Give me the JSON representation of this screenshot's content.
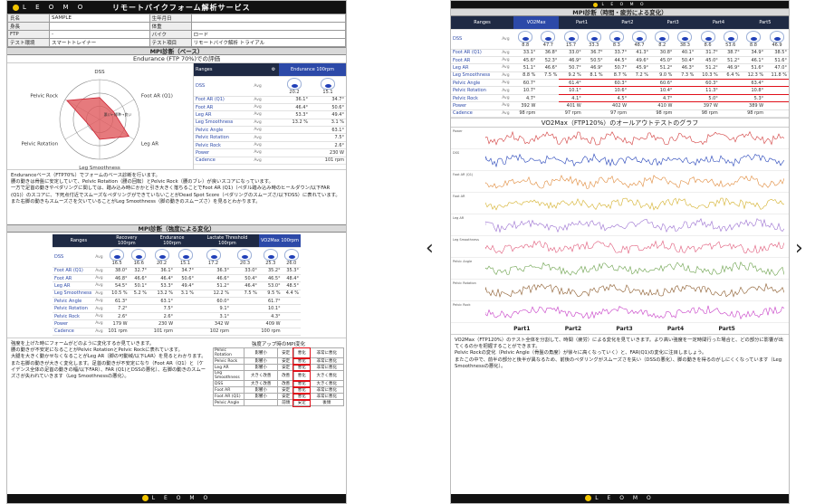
{
  "brand": {
    "logo_text": "L E O M O",
    "accent": "#f2c500"
  },
  "left_doc": {
    "title": "リモートバイクフォーム解析サービス",
    "info": [
      [
        "氏名",
        "SAMPLE",
        "生年月日",
        ""
      ],
      [
        "身長",
        "",
        "体重",
        ""
      ],
      [
        "FTP",
        "-",
        "バイク",
        "ロード"
      ],
      [
        "テスト環境",
        "スマートトレイナー",
        "テスト項目",
        "リモートバイク解析 トライアル"
      ]
    ],
    "section1": "MPI診断（ベース）",
    "subtitle1": "Endurance (FTP 70%)での評価",
    "radar": {
      "labels": [
        "DSS",
        "Foot AR (Q1)",
        "Leg AR",
        "Leg Smoothness",
        "Pelvic Rotation",
        "Pelvic Rock"
      ],
      "values": [
        0.55,
        0.4,
        0.85,
        0.5,
        0.3,
        0.95
      ],
      "ring_labels": "悪い←標準→良い",
      "color": "#e0595c"
    },
    "metrics_table": {
      "col_metric": "Ranges",
      "col_value": "Endurance 100rpm",
      "rows": [
        [
          "DSS",
          "Avg",
          "20.2",
          "15.1"
        ],
        [
          "Foot AR (Q1)",
          "Avg",
          "36.1°",
          "34.7°"
        ],
        [
          "Foot AR",
          "Avg",
          "46.4°",
          "50.6°"
        ],
        [
          "Leg AR",
          "Avg",
          "53.3°",
          "49.4°"
        ],
        [
          "Leg Smoothness",
          "Avg",
          "13.2 %",
          "3.1 %"
        ],
        [
          "Pelvic Angle",
          "Avg",
          "",
          "63.1°"
        ],
        [
          "Pelvic Rotation",
          "Avg",
          "",
          "7.5°"
        ],
        [
          "Pelvic Rock",
          "Avg",
          "",
          "2.6°"
        ],
        [
          "Power",
          "Avg",
          "",
          "230 W"
        ],
        [
          "Cadence",
          "Avg",
          "",
          "101 rpm"
        ]
      ]
    },
    "paragraphs": [
      "Enduranceベース（FTP70%）でフォームのベース診断を行います。",
      "腰の動きは骨盤に安定していて、Pelvic Rotation（腰の回転）とPelvic Rock（腰のブレ）が良いスコアになっています。",
      "一方で足首の動きやペダリングに関しては、踏み込み時にかかと引き大きく落ちることでFoot AR (Q1)（ペダル踏み込み時のヒールダウン/以下FAR (Q1)）のスコアに、下死点付近でスムーズなペダリングができていないことがDead Spot Score（ペダリングのスムーズさ/以下DSS）に表れています。",
      "また右脚の動きもスムーズさを欠いていることがLeg Smoothness（脚の動きのスムーズさ）を見るとわかります。"
    ],
    "section2": "MPI診断（強度による変化）",
    "intensity_table": {
      "headers": [
        "Ranges",
        "Recovery 100rpm",
        "Endurance 100rpm",
        "Lactate Threshold 100rpm",
        "VO2Max 100rpm"
      ],
      "rows": [
        [
          "DSS",
          "Avg",
          "16.5",
          "16.6",
          "20.2",
          "15.1",
          "17.2",
          "20.3",
          "25.3",
          "26.0"
        ],
        [
          "Foot AR (Q1)",
          "Avg",
          "38.0°",
          "32.7°",
          "36.1°",
          "34.7°",
          "36.3°",
          "33.0°",
          "35.2°",
          "35.3°"
        ],
        [
          "Foot AR",
          "Avg",
          "46.8°",
          "46.6°",
          "46.4°",
          "50.6°",
          "46.6°",
          "50.4°",
          "46.5°",
          "48.4°"
        ],
        [
          "Leg AR",
          "Avg",
          "54.5°",
          "50.1°",
          "53.3°",
          "49.4°",
          "51.2°",
          "46.4°",
          "53.0°",
          "48.5°"
        ],
        [
          "Leg Smoothness",
          "Avg",
          "10.5 %",
          "5.2 %",
          "13.2 %",
          "3.1 %",
          "12.2 %",
          "7.5 %",
          "9.5 %",
          "4.4 %"
        ],
        [
          "Pelvic Angle",
          "Avg",
          "61.3°",
          "",
          "63.1°",
          "",
          "60.0°",
          "",
          "61.7°",
          ""
        ],
        [
          "Pelvic Rotation",
          "Avg",
          "7.2°",
          "",
          "7.5°",
          "",
          "9.1°",
          "",
          "10.1°",
          ""
        ],
        [
          "Pelvic Rock",
          "Avg",
          "2.6°",
          "",
          "2.6°",
          "",
          "3.1°",
          "",
          "4.3°",
          ""
        ],
        [
          "Power",
          "Avg",
          "179 W",
          "",
          "230 W",
          "",
          "342 W",
          "",
          "409 W",
          ""
        ],
        [
          "Cadence",
          "Avg",
          "101 rpm",
          "",
          "101 rpm",
          "",
          "102 rpm",
          "",
          "100 rpm",
          ""
        ]
      ]
    },
    "paragraphs2": [
      "強度を上げた時にフォームがどのように変化するか見ていきます。",
      "腰の動きが不安定になることがPelvic RotationとPelvic Rockに表れています。",
      "大腿を大きく動かせなくなることがLeg AR（脚の可動域/以下LAR）を見るとわかります。",
      "また右脚の動きが大きく変化します。足首の動きが不安定になり（Foot AR（Q1）と（ケイデンス全体の足首の動きの幅/以下FAR）、FAR (Q1)とDSSの悪化）、右脚の動きのスムーズさが失われていきます（Leg Smoothnessの悪化）。"
    ],
    "mpi_change": {
      "title": "強度アップ時のMPI変化",
      "rows": [
        [
          "Pelvic Rotation",
          "影響小",
          "安定",
          "悪化",
          "非常に悪化"
        ],
        [
          "Pelvic Rock",
          "影響小",
          "安定",
          "悪化",
          "非常に悪化"
        ],
        [
          "Leg AR",
          "影響小",
          "安定",
          "悪化",
          "非常に悪化"
        ],
        [
          "Leg Smoothness",
          "大きく改善",
          "改善",
          "悪化",
          "大きく悪化"
        ],
        [
          "DSS",
          "大きく改善",
          "改善",
          "悪化",
          "大きく悪化"
        ],
        [
          "Foot AR",
          "影響小",
          "安定",
          "悪化",
          "非常に悪化"
        ],
        [
          "Foot AR (Q1)",
          "影響小",
          "安定",
          "悪化",
          "非常に悪化"
        ],
        [
          "Pelvic Angle",
          "",
          "前傾",
          "安定",
          "後傾"
        ]
      ]
    }
  },
  "right_doc": {
    "section1": "MPI診断（時間・疲労による変化）",
    "headers": [
      "Ranges",
      "VO2Max",
      "Part1",
      "Part2",
      "Part3",
      "Part4",
      "Part5"
    ],
    "rows": [
      [
        "DSS",
        "Avg",
        "8.8",
        "47.7",
        "15.7",
        "33.3",
        "8.3",
        "48.7",
        "8.2",
        "38.3",
        "8.6",
        "53.6",
        "8.8",
        "46.9"
      ],
      [
        "Foot AR (Q1)",
        "Avg",
        "33.1°",
        "36.8°",
        "33.0°",
        "36.7°",
        "33.7°",
        "41.3°",
        "30.8°",
        "40.1°",
        "31.7°",
        "38.7°",
        "34.9°",
        "38.5°"
      ],
      [
        "Foot AR",
        "Avg",
        "45.6°",
        "52.3°",
        "46.9°",
        "50.5°",
        "44.5°",
        "49.6°",
        "45.0°",
        "50.4°",
        "45.0°",
        "51.2°",
        "46.1°",
        "51.6°"
      ],
      [
        "Leg AR",
        "Avg",
        "51.1°",
        "46.6°",
        "50.7°",
        "46.9°",
        "50.7°",
        "45.9°",
        "51.2°",
        "46.3°",
        "51.2°",
        "46.9°",
        "51.6°",
        "47.0°"
      ],
      [
        "Leg Smoothness",
        "Avg",
        "8.8 %",
        "7.5 %",
        "9.2 %",
        "8.1 %",
        "8.7 %",
        "7.2 %",
        "9.0 %",
        "7.3 %",
        "10.3 %",
        "6.4 %",
        "12.3 %",
        "11.8 %"
      ],
      [
        "Pelvic Angle",
        "Avg",
        "60.7°",
        "",
        "61.4°",
        "",
        "60.3°",
        "",
        "60.6°",
        "",
        "60.3°",
        "",
        "63.4°",
        ""
      ],
      [
        "Pelvic Rotation",
        "Avg",
        "10.7°",
        "",
        "10.1°",
        "",
        "10.6°",
        "",
        "10.4°",
        "",
        "11.3°",
        "",
        "10.8°",
        ""
      ],
      [
        "Pelvic Rock",
        "Avg",
        "4.7°",
        "",
        "4.1°",
        "",
        "4.5°",
        "",
        "4.7°",
        "",
        "5.0°",
        "",
        "5.3°",
        ""
      ],
      [
        "Power",
        "Avg",
        "392 W",
        "",
        "401 W",
        "",
        "402 W",
        "",
        "410 W",
        "",
        "397 W",
        "",
        "389 W",
        ""
      ],
      [
        "Cadence",
        "Avg",
        "98 rpm",
        "",
        "97 rpm",
        "",
        "97 rpm",
        "",
        "98 rpm",
        "",
        "98 rpm",
        "",
        "98 rpm",
        ""
      ]
    ],
    "graph_title": "VO2Max（FTP120%）のオールアウトテストのグラフ",
    "lanes": [
      "Power",
      "DSS",
      "Foot AR (Q1)",
      "Foot AR",
      "Leg AR",
      "Leg Smoothness",
      "Pelvic Angle",
      "Pelvic Rotation",
      "Pelvic Rock"
    ],
    "lane_colors": [
      "#d23b3b",
      "#2140b8",
      "#e08a3a",
      "#d4b02a",
      "#9a6fd0",
      "#e05a7a",
      "#6aa14a",
      "#8b5a2b",
      "#c63cc6"
    ],
    "parts": [
      "Part1",
      "Part2",
      "Part3",
      "Part4",
      "Part5"
    ],
    "paragraphs": [
      "VO2Max（FTP120%）のテスト全体を分割して、時間（疲労）による変化を見ていきます。より高い強度を一定時間行った場合と、どの部分に影響が出てくるのかを把握することができます。",
      "Pelvic Rockの変化（Pelvic Angle（骨盤の角度）が徐々に高くなっていく）と、FAR(Q1)の変化に注目しましょう。",
      "またこの中で、前半の部分と後半が異なるため、前後のペダリングがスムーズさを失い（DSSの悪化）、脚の動きを得るのがしにくくなっています（Leg Smoothnessの悪化）。"
    ]
  },
  "nav": {
    "prev": "‹",
    "next": "›"
  },
  "footer_logo": "L E O M O"
}
